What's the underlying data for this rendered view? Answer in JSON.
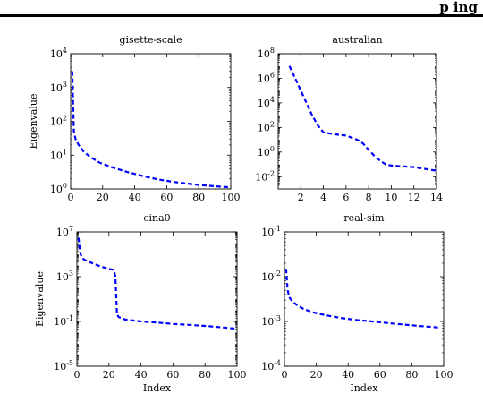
{
  "header": {
    "text": "p ing"
  },
  "chart_data": [
    {
      "type": "line",
      "title": "gisette-scale",
      "xlabel": "",
      "ylabel": "Eigenvalue",
      "xscale": "linear",
      "yscale": "log",
      "xlim": [
        0,
        100
      ],
      "ylim": [
        1,
        10000
      ],
      "xticks": [
        0,
        20,
        40,
        60,
        80,
        100
      ],
      "yticks": [
        1,
        10,
        100,
        1000,
        10000
      ],
      "xtick_labels": [
        "0",
        "20",
        "40",
        "60",
        "80",
        "100"
      ],
      "ytick_labels": [
        "10^0",
        "10^1",
        "10^2",
        "10^3",
        "10^4"
      ],
      "series": [
        {
          "color": "#0000ff",
          "style": "dashed",
          "x": [
            1,
            2,
            3,
            5,
            8,
            12,
            18,
            25,
            35,
            45,
            55,
            65,
            75,
            85,
            95,
            100
          ],
          "y": [
            3000,
            50,
            30,
            20,
            13,
            9,
            6,
            4.5,
            3.2,
            2.4,
            1.9,
            1.6,
            1.4,
            1.25,
            1.15,
            1.12
          ]
        }
      ]
    },
    {
      "type": "line",
      "title": "australian",
      "xlabel": "",
      "ylabel": "",
      "xscale": "linear",
      "yscale": "log",
      "xlim": [
        0,
        14
      ],
      "ylim": [
        0.001,
        100000000
      ],
      "xticks": [
        2,
        4,
        6,
        8,
        10,
        12,
        14
      ],
      "yticks": [
        0.01,
        1,
        100,
        10000,
        1000000,
        100000000
      ],
      "xtick_labels": [
        "2",
        "4",
        "6",
        "8",
        "10",
        "12",
        "14"
      ],
      "ytick_labels": [
        "10^-2",
        "10^0",
        "10^2",
        "10^4",
        "10^6",
        "10^8"
      ],
      "series": [
        {
          "color": "#0000ff",
          "style": "dashed",
          "x": [
            1,
            1.5,
            2,
            2.5,
            3,
            3.5,
            4,
            5,
            6,
            7,
            7.5,
            8,
            8.5,
            9,
            9.5,
            10,
            12,
            14
          ],
          "y": [
            10000000,
            1000000,
            100000,
            10000,
            1000,
            150,
            40,
            28,
            22,
            10,
            5,
            1.5,
            0.5,
            0.2,
            0.1,
            0.08,
            0.06,
            0.03
          ]
        }
      ]
    },
    {
      "type": "line",
      "title": "cina0",
      "xlabel": "Index",
      "ylabel": "Eigenvalue",
      "xscale": "linear",
      "yscale": "log",
      "xlim": [
        0,
        100
      ],
      "ylim": [
        1e-05,
        10000000
      ],
      "xticks": [
        0,
        20,
        40,
        60,
        80,
        100
      ],
      "yticks": [
        1e-05,
        0.1,
        1000,
        10000000
      ],
      "xtick_labels": [
        "0",
        "20",
        "40",
        "60",
        "80",
        "100"
      ],
      "ytick_labels": [
        "10^-5",
        "10^-1",
        "10^3",
        "10^7"
      ],
      "series": [
        {
          "color": "#0000ff",
          "style": "dashed",
          "x": [
            1,
            2,
            3,
            5,
            10,
            15,
            20,
            23,
            24,
            25,
            26,
            30,
            40,
            50,
            60,
            70,
            80,
            90,
            100
          ],
          "y": [
            3000000,
            150000,
            50000,
            30000,
            15000,
            8000,
            5000,
            4000,
            1000,
            0.5,
            0.25,
            0.15,
            0.1,
            0.08,
            0.06,
            0.05,
            0.04,
            0.03,
            0.022
          ]
        }
      ]
    },
    {
      "type": "line",
      "title": "real-sim",
      "xlabel": "Index",
      "ylabel": "",
      "xscale": "linear",
      "yscale": "log",
      "xlim": [
        0,
        100
      ],
      "ylim": [
        0.0001,
        0.1
      ],
      "xticks": [
        0,
        20,
        40,
        60,
        80,
        100
      ],
      "yticks": [
        0.0001,
        0.001,
        0.01,
        0.1
      ],
      "xtick_labels": [
        "0",
        "20",
        "40",
        "60",
        "80",
        "100"
      ],
      "ytick_labels": [
        "10^-4",
        "10^-3",
        "10^-2",
        "10^-1"
      ],
      "series": [
        {
          "color": "#0000ff",
          "style": "dashed",
          "x": [
            1,
            2,
            3,
            5,
            8,
            12,
            18,
            25,
            35,
            45,
            55,
            65,
            75,
            85,
            95,
            98
          ],
          "y": [
            0.015,
            0.005,
            0.0035,
            0.0028,
            0.0023,
            0.0019,
            0.0016,
            0.0014,
            0.0012,
            0.00108,
            0.001,
            0.00092,
            0.00085,
            0.00079,
            0.00074,
            0.00072
          ]
        }
      ]
    }
  ]
}
